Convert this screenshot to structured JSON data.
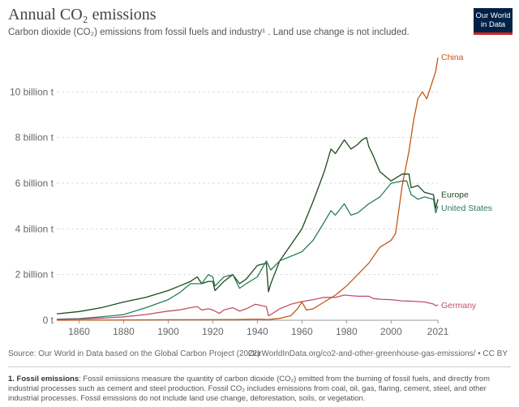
{
  "header": {
    "title": "Annual CO₂ emissions",
    "subtitle": "Carbon dioxide (CO₂) emissions from fossil fuels and industry¹ . Land use change is not included.",
    "logo_line1": "Our World",
    "logo_line2": "in Data"
  },
  "footer": {
    "source": "Source: Our World in Data based on the Global Carbon Project (2022)",
    "url": "OurWorldInData.org/co2-and-other-greenhouse-gas-emissions/ • CC BY",
    "note_label": "1. Fossil emissions",
    "note_text": ": Fossil emissions measure the quantity of carbon dioxide (CO₂) emitted from the burning of fossil fuels, and directly from industrial processes such as cement and steel production. Fossil CO₂ includes emissions from coal, oil, gas, flaring, cement, steel, and other industrial processes. Fossil emissions do not include land use change, deforestation, soils, or vegetation."
  },
  "colors": {
    "China": "#c05917",
    "Europe": "#1c4a1c",
    "United States": "#2a7d5c",
    "Germany": "#c15065",
    "grid": "#dddddd",
    "axis": "#999999"
  },
  "chart_data": {
    "type": "line",
    "xlim": [
      1850,
      2021
    ],
    "ylim": [
      0,
      12
    ],
    "y_unit": "billion t",
    "x_ticks": [
      "1860",
      "1880",
      "1900",
      "1920",
      "1940",
      "1960",
      "1980",
      "2000",
      "2021"
    ],
    "x_tick_values": [
      1860,
      1880,
      1900,
      1920,
      1940,
      1960,
      1980,
      2000,
      2021
    ],
    "y_ticks": [
      "0 t",
      "2 billion t",
      "4 billion t",
      "6 billion t",
      "8 billion t",
      "10 billion t"
    ],
    "y_tick_values": [
      0,
      2,
      4,
      6,
      8,
      10
    ],
    "series": [
      {
        "name": "China",
        "x": [
          1850,
          1900,
          1930,
          1940,
          1945,
          1950,
          1955,
          1958,
          1960,
          1962,
          1965,
          1970,
          1975,
          1980,
          1985,
          1990,
          1995,
          2000,
          2002,
          2005,
          2008,
          2010,
          2012,
          2014,
          2016,
          2018,
          2020,
          2021
        ],
        "y": [
          0.0,
          0.02,
          0.03,
          0.05,
          0.03,
          0.08,
          0.2,
          0.5,
          0.8,
          0.45,
          0.5,
          0.8,
          1.1,
          1.5,
          2.0,
          2.5,
          3.2,
          3.5,
          3.8,
          5.9,
          7.4,
          8.7,
          9.7,
          10.0,
          9.7,
          10.3,
          10.9,
          11.5
        ]
      },
      {
        "name": "Europe",
        "x": [
          1850,
          1860,
          1870,
          1880,
          1890,
          1900,
          1905,
          1910,
          1913,
          1915,
          1918,
          1920,
          1921,
          1925,
          1929,
          1932,
          1935,
          1940,
          1944,
          1945,
          1946,
          1950,
          1955,
          1960,
          1965,
          1970,
          1973,
          1975,
          1979,
          1982,
          1985,
          1987,
          1989,
          1990,
          1992,
          1995,
          2000,
          2005,
          2008,
          2009,
          2012,
          2015,
          2019,
          2020,
          2021
        ],
        "y": [
          0.28,
          0.38,
          0.55,
          0.8,
          1.0,
          1.3,
          1.5,
          1.7,
          1.9,
          1.6,
          1.7,
          1.7,
          1.3,
          1.7,
          2.0,
          1.6,
          1.8,
          2.4,
          2.5,
          1.25,
          1.6,
          2.6,
          3.3,
          4.0,
          5.2,
          6.5,
          7.5,
          7.3,
          7.9,
          7.5,
          7.7,
          7.9,
          8.0,
          7.6,
          7.2,
          6.5,
          6.1,
          6.4,
          6.4,
          5.8,
          5.9,
          5.6,
          5.5,
          4.9,
          5.3
        ]
      },
      {
        "name": "United States",
        "x": [
          1850,
          1860,
          1870,
          1880,
          1890,
          1900,
          1905,
          1910,
          1915,
          1918,
          1920,
          1921,
          1925,
          1929,
          1932,
          1935,
          1940,
          1944,
          1946,
          1950,
          1955,
          1960,
          1965,
          1970,
          1973,
          1975,
          1979,
          1982,
          1985,
          1990,
          1995,
          2000,
          2005,
          2007,
          2009,
          2012,
          2015,
          2019,
          2020,
          2021
        ],
        "y": [
          0.05,
          0.07,
          0.15,
          0.25,
          0.55,
          0.9,
          1.2,
          1.6,
          1.6,
          2.0,
          1.9,
          1.5,
          1.9,
          2.0,
          1.4,
          1.6,
          1.9,
          2.6,
          2.2,
          2.6,
          2.8,
          3.0,
          3.5,
          4.3,
          4.8,
          4.6,
          5.1,
          4.6,
          4.7,
          5.1,
          5.4,
          6.0,
          6.1,
          6.1,
          5.5,
          5.3,
          5.4,
          5.3,
          4.7,
          5.0
        ]
      },
      {
        "name": "Germany",
        "x": [
          1850,
          1860,
          1870,
          1880,
          1890,
          1900,
          1905,
          1910,
          1913,
          1915,
          1918,
          1920,
          1923,
          1925,
          1929,
          1932,
          1935,
          1939,
          1944,
          1945,
          1946,
          1950,
          1955,
          1960,
          1965,
          1970,
          1975,
          1979,
          1985,
          1990,
          1992,
          1995,
          2000,
          2005,
          2010,
          2015,
          2019,
          2020,
          2021
        ],
        "y": [
          0.03,
          0.05,
          0.09,
          0.15,
          0.25,
          0.4,
          0.45,
          0.55,
          0.6,
          0.45,
          0.5,
          0.45,
          0.3,
          0.45,
          0.55,
          0.4,
          0.5,
          0.7,
          0.6,
          0.2,
          0.25,
          0.5,
          0.7,
          0.82,
          0.9,
          1.0,
          1.0,
          1.1,
          1.05,
          1.05,
          0.95,
          0.92,
          0.9,
          0.85,
          0.83,
          0.8,
          0.71,
          0.64,
          0.67
        ]
      }
    ],
    "labels": [
      "China",
      "Europe",
      "United States",
      "Germany"
    ]
  }
}
